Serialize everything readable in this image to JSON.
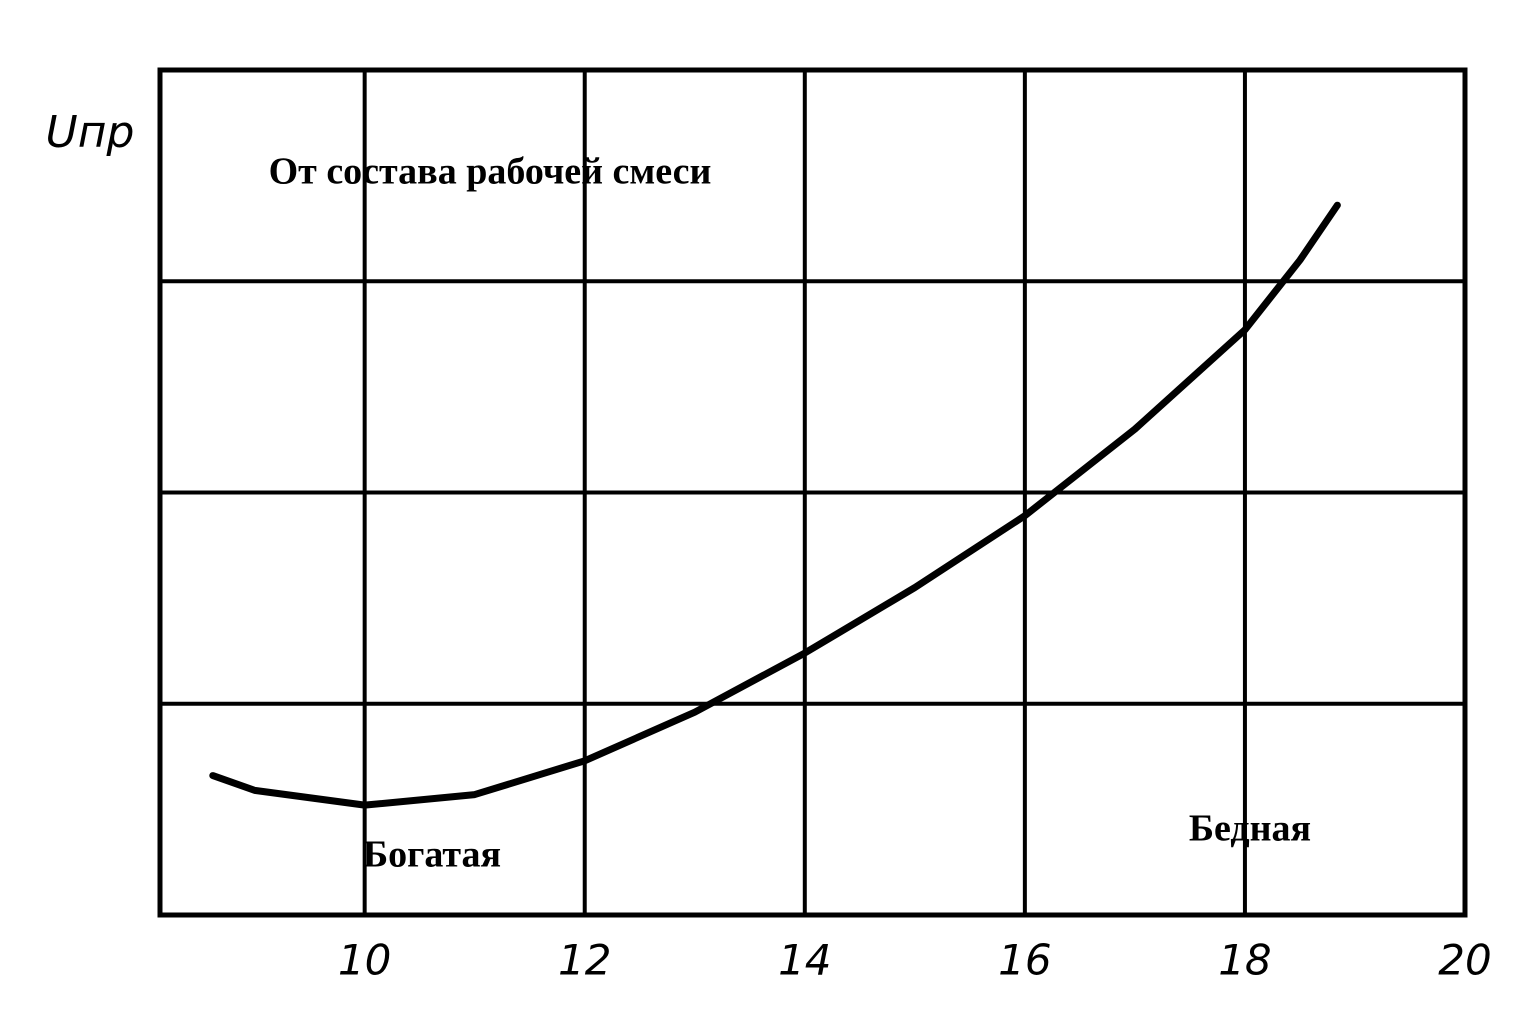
{
  "chart_data": {
    "type": "line",
    "y_label": "Uпр",
    "annotations": [
      "От состава  рабочей смеси",
      "Богатая",
      "Бедная"
    ],
    "x": [
      8.62,
      9.0,
      10.0,
      11.0,
      12.0,
      13.0,
      14.0,
      15.0,
      16.0,
      17.0,
      18.0,
      18.5,
      18.84
    ],
    "series": [
      {
        "color": "#000000",
        "values": [
          0.66,
          0.59,
          0.52,
          0.57,
          0.73,
          0.96,
          1.24,
          1.55,
          1.89,
          2.3,
          2.77,
          3.1,
          3.36
        ]
      }
    ],
    "xlim": [
      8.14,
      20
    ],
    "xticks": [
      10,
      12,
      14,
      16,
      18,
      20
    ],
    "ylim": [
      0,
      4
    ],
    "y_gridlines": [
      1,
      2,
      3
    ],
    "grid": true
  }
}
